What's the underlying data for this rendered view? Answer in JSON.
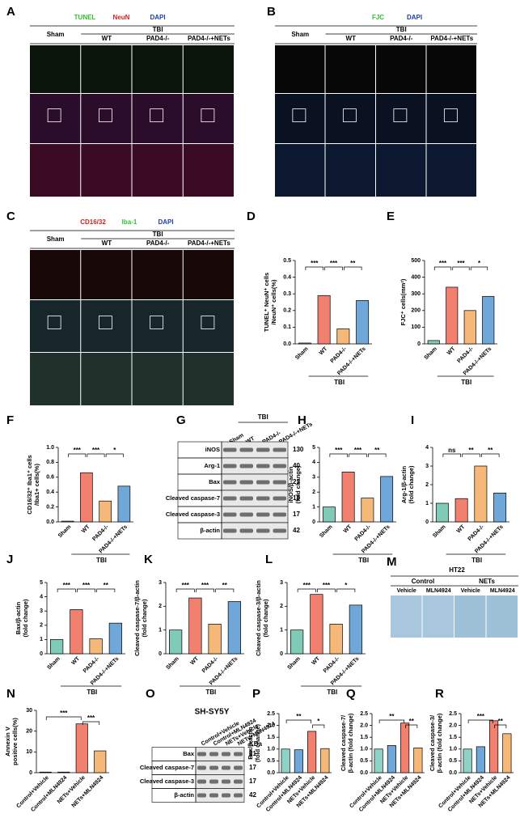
{
  "image_panels": [
    {
      "letter": "A",
      "stains": [
        {
          "text": "TUNEL",
          "color": "#2fbf2f"
        },
        {
          "text": "NeuN",
          "color": "#d02020"
        },
        {
          "text": "DAPI",
          "color": "#1f3f9f"
        }
      ],
      "sham": "Sham",
      "tbi": "TBI",
      "columns": [
        "WT",
        "PAD4-/-",
        "PAD4-/-+NETs"
      ]
    },
    {
      "letter": "B",
      "stains": [
        {
          "text": "FJC",
          "color": "#2fbf2f"
        },
        {
          "text": "DAPI",
          "color": "#1f3f9f"
        }
      ],
      "sham": "Sham",
      "tbi": "TBI",
      "columns": [
        "WT",
        "PAD4-/-",
        "PAD4-/-+NETs"
      ]
    },
    {
      "letter": "C",
      "stains": [
        {
          "text": "CD16/32",
          "color": "#d02020"
        },
        {
          "text": "Iba-1",
          "color": "#2fbf2f"
        },
        {
          "text": "DAPI",
          "color": "#1f3f9f"
        }
      ],
      "sham": "Sham",
      "tbi": "TBI",
      "columns": [
        "WT",
        "PAD4-/-",
        "PAD4-/-+NETs"
      ]
    }
  ],
  "culture_panel": {
    "letter": "M",
    "title": "HT22",
    "groups": [
      "Control",
      "NETs"
    ],
    "columns": [
      "Vehicle",
      "MLN4924",
      "Vehicle",
      "MLN4924"
    ]
  },
  "blots": [
    {
      "letter": "G",
      "lanes": [
        "Sham",
        "WT",
        "PAD4-/-",
        "PAD4-/-+NETs"
      ],
      "group": "TBI",
      "rows": [
        {
          "name": "iNOS",
          "kda": 130
        },
        {
          "name": "Arg-1",
          "kda": 40
        },
        {
          "name": "Bax",
          "kda": 21
        },
        {
          "name": "Cleaved caspase-7",
          "kda": 18
        },
        {
          "name": "Cleaved caspase-3",
          "kda": 17
        },
        {
          "name": "β-actin",
          "kda": 42
        }
      ]
    },
    {
      "letter": "O",
      "title": "SH-SY5Y",
      "unit": "KDa",
      "lanes": [
        "Control+Vehicle",
        "Control+MLN4924",
        "NETs+Vehicle",
        "NETs+MLN4924"
      ],
      "rows": [
        {
          "name": "Bax",
          "kda": 21
        },
        {
          "name": "Cleaved caspase-7",
          "kda": 17
        },
        {
          "name": "Cleaved caspase-3",
          "kda": 17
        },
        {
          "name": "β-actin",
          "kda": 42
        }
      ]
    }
  ],
  "chart_data": [
    {
      "type": "bar",
      "letter": "D",
      "y_label": [
        "TUNEL⁺ NeuN⁺ cells",
        "/NeuN⁺ cells(%)"
      ],
      "categories": [
        "Sham",
        "WT",
        "PAD4-/-",
        "PAD4-/-+NETs"
      ],
      "group_label": "TBI",
      "values": [
        0.005,
        0.29,
        0.09,
        0.26
      ],
      "colors": [
        "#7fcbb8",
        "#f2806f",
        "#f5b878",
        "#6fa8d8"
      ],
      "ylim": [
        0,
        0.5
      ],
      "yticks": [
        {
          "value": 0,
          "label": "0.0"
        },
        0.1,
        0.2,
        0.3,
        0.4,
        0.5
      ],
      "annotations": [
        "***",
        "***",
        "**"
      ]
    },
    {
      "type": "bar",
      "letter": "E",
      "y_label": [
        "FJC⁺ cells(mm²)"
      ],
      "categories": [
        "Sham",
        "WT",
        "PAD4-/-",
        "PAD4-/-+NETs"
      ],
      "group_label": "TBI",
      "values": [
        20,
        340,
        200,
        285
      ],
      "colors": [
        "#7fcbb8",
        "#f2806f",
        "#f5b878",
        "#6fa8d8"
      ],
      "ylim": [
        0,
        500
      ],
      "yticks": [
        0,
        100,
        200,
        300,
        400,
        500
      ],
      "annotations": [
        "***",
        "***",
        "*"
      ]
    },
    {
      "type": "bar",
      "letter": "F",
      "y_label": [
        "CD16/32⁺ Iba1⁺ cells",
        "/Iba1+ cells(%)"
      ],
      "categories": [
        "Sham",
        "WT",
        "PAD4-/-",
        "PAD4-/-+NETs"
      ],
      "group_label": "TBI",
      "values": [
        0.01,
        0.66,
        0.28,
        0.48
      ],
      "colors": [
        "#7fcbb8",
        "#f2806f",
        "#f5b878",
        "#6fa8d8"
      ],
      "ylim": [
        0,
        1
      ],
      "yticks": [
        {
          "value": 0,
          "label": "0.0"
        },
        0.2,
        0.4,
        0.6,
        0.8,
        {
          "value": 1,
          "label": "1.0"
        }
      ],
      "annotations": [
        "***",
        "***",
        "*"
      ]
    },
    {
      "type": "bar",
      "letter": "H",
      "y_label": [
        "iNOS/β-actin",
        "(fold change)"
      ],
      "categories": [
        "Sham",
        "WT",
        "PAD4-/-",
        "PAD4-/-+NETs"
      ],
      "group_label": "TBI",
      "values": [
        1,
        3.35,
        1.6,
        3.05
      ],
      "colors": [
        "#7fcbb8",
        "#f2806f",
        "#f5b878",
        "#6fa8d8"
      ],
      "ylim": [
        0,
        5
      ],
      "yticks": [
        0,
        1,
        2,
        3,
        4,
        5
      ],
      "annotations": [
        "***",
        "***",
        "**"
      ]
    },
    {
      "type": "bar",
      "letter": "I",
      "y_label": [
        "Arg-1/β-actin",
        "(fold change)"
      ],
      "categories": [
        "Sham",
        "WT",
        "PAD4-/-",
        "PAD4-/-+NETs"
      ],
      "group_label": "TBI",
      "values": [
        1,
        1.25,
        3.0,
        1.55
      ],
      "colors": [
        "#7fcbb8",
        "#f2806f",
        "#f5b878",
        "#6fa8d8"
      ],
      "ylim": [
        0,
        4
      ],
      "yticks": [
        0,
        1,
        2,
        3,
        4
      ],
      "annotations": [
        "ns",
        "**",
        "**"
      ]
    },
    {
      "type": "bar",
      "letter": "J",
      "y_label": [
        "Bax/β-actin",
        "(fold change)"
      ],
      "categories": [
        "Sham",
        "WT",
        "PAD4-/-",
        "PAD4-/-+NETs"
      ],
      "group_label": "TBI",
      "values": [
        1,
        3.1,
        1.05,
        2.15
      ],
      "colors": [
        "#7fcbb8",
        "#f2806f",
        "#f5b878",
        "#6fa8d8"
      ],
      "ylim": [
        0,
        5
      ],
      "yticks": [
        0,
        1,
        2,
        3,
        4,
        5
      ],
      "annotations": [
        "***",
        "***",
        "**"
      ]
    },
    {
      "type": "bar",
      "letter": "K",
      "y_label": [
        "Cleaved caspase-7/β-actin",
        "(fold change)"
      ],
      "categories": [
        "Sham",
        "WT",
        "PAD4-/-",
        "PAD4-/-+NETs"
      ],
      "group_label": "TBI",
      "values": [
        1,
        2.35,
        1.25,
        2.2
      ],
      "colors": [
        "#7fcbb8",
        "#f2806f",
        "#f5b878",
        "#6fa8d8"
      ],
      "ylim": [
        0,
        3
      ],
      "yticks": [
        0,
        1,
        2,
        3
      ],
      "annotations": [
        "***",
        "***",
        "**"
      ]
    },
    {
      "type": "bar",
      "letter": "L",
      "y_label": [
        "Cleaved caspase-3/β-actin",
        "(fold change)"
      ],
      "categories": [
        "Sham",
        "WT",
        "PAD4-/-",
        "PAD4-/-+NETs"
      ],
      "group_label": "TBI",
      "values": [
        1,
        2.5,
        1.25,
        2.05
      ],
      "colors": [
        "#7fcbb8",
        "#f2806f",
        "#f5b878",
        "#6fa8d8"
      ],
      "ylim": [
        0,
        3
      ],
      "yticks": [
        0,
        1,
        2,
        3
      ],
      "annotations": [
        "***",
        "***",
        "*"
      ]
    },
    {
      "type": "bar",
      "letter": "N",
      "y_label": [
        "Annexin V",
        "positive cells(%)"
      ],
      "categories": [
        "Control+Vehicle",
        "Control+MLN4924",
        "NETs+Vehicle",
        "NETs+MLN4924"
      ],
      "values": [
        0.3,
        0.3,
        23.5,
        10.5
      ],
      "colors": [
        "#8fd3c6",
        "#6fa8d8",
        "#f2806f",
        "#f5b878"
      ],
      "ylim": [
        0,
        30
      ],
      "yticks": [
        0,
        10,
        20,
        30
      ],
      "annotations": [
        "***",
        "***"
      ]
    },
    {
      "type": "bar",
      "letter": "P",
      "y_label": [
        "Bax/β-actin",
        "(fold change)"
      ],
      "categories": [
        "Control+Vehicle",
        "Control+MLN4924",
        "NETs+Vehicle",
        "NETs+MLN4924"
      ],
      "values": [
        1,
        0.97,
        1.75,
        1.02
      ],
      "colors": [
        "#8fd3c6",
        "#6fa8d8",
        "#f2806f",
        "#f5b878"
      ],
      "ylim": [
        0,
        2.5
      ],
      "yticks": [
        {
          "value": 0,
          "label": "0.0"
        },
        0.5,
        {
          "value": 1,
          "label": "1.0"
        },
        1.5,
        {
          "value": 2,
          "label": "2.0"
        },
        2.5
      ],
      "annotations": [
        "**",
        "*"
      ]
    },
    {
      "type": "bar",
      "letter": "Q",
      "y_label": [
        "Cleaved caspase-7/",
        "β-actin (fold change)"
      ],
      "categories": [
        "Control+Vehicle",
        "Control+MLN4924",
        "NETs+Vehicle",
        "NETs+MLN4924"
      ],
      "values": [
        1,
        1.15,
        2.1,
        1.05
      ],
      "colors": [
        "#8fd3c6",
        "#6fa8d8",
        "#f2806f",
        "#f5b878"
      ],
      "ylim": [
        0,
        2.5
      ],
      "yticks": [
        {
          "value": 0,
          "label": "0.0"
        },
        0.5,
        {
          "value": 1,
          "label": "1.0"
        },
        1.5,
        {
          "value": 2,
          "label": "2.0"
        },
        2.5
      ],
      "annotations": [
        "**",
        "**"
      ]
    },
    {
      "type": "bar",
      "letter": "R",
      "y_label": [
        "Cleaved caspase-3/",
        "β-actin (fold change)"
      ],
      "categories": [
        "Control+Vehicle",
        "Control+MLN4924",
        "NETs+Vehicle",
        "NETs+MLN4924"
      ],
      "values": [
        1,
        1.1,
        2.2,
        1.65
      ],
      "colors": [
        "#8fd3c6",
        "#6fa8d8",
        "#f2806f",
        "#f5b878"
      ],
      "ylim": [
        0,
        2.5
      ],
      "yticks": [
        {
          "value": 0,
          "label": "0.0"
        },
        0.5,
        {
          "value": 1,
          "label": "1.0"
        },
        1.5,
        {
          "value": 2,
          "label": "2.0"
        },
        2.5
      ],
      "annotations": [
        "***",
        "**"
      ]
    }
  ]
}
